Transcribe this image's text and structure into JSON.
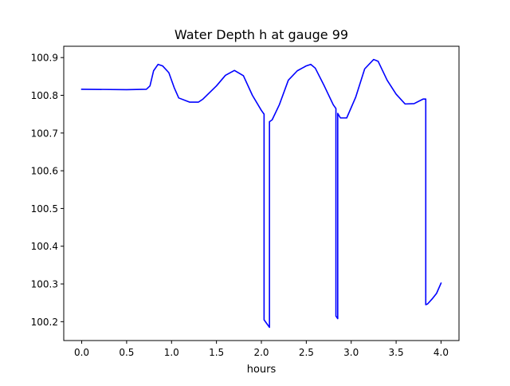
{
  "chart_data": {
    "type": "line",
    "title": "Water Depth h at gauge 99",
    "xlabel": "hours",
    "ylabel": "",
    "xlim": [
      -0.2,
      4.2
    ],
    "ylim": [
      100.15,
      100.93
    ],
    "xticks": [
      0.0,
      0.5,
      1.0,
      1.5,
      2.0,
      2.5,
      3.0,
      3.5,
      4.0
    ],
    "xtick_labels": [
      "0.0",
      "0.5",
      "1.0",
      "1.5",
      "2.0",
      "2.5",
      "3.0",
      "3.5",
      "4.0"
    ],
    "yticks": [
      100.2,
      100.3,
      100.4,
      100.5,
      100.6,
      100.7,
      100.8,
      100.9
    ],
    "ytick_labels": [
      "100.2",
      "100.3",
      "100.4",
      "100.5",
      "100.6",
      "100.7",
      "100.8",
      "100.9"
    ],
    "grid": false,
    "legend": "none",
    "series": [
      {
        "color": "#0000ff",
        "x": [
          0.0,
          0.5,
          0.72,
          0.76,
          0.8,
          0.85,
          0.9,
          0.97,
          1.03,
          1.08,
          1.2,
          1.3,
          1.35,
          1.5,
          1.6,
          1.7,
          1.8,
          1.9,
          2.0,
          2.03,
          2.03,
          2.09,
          2.09,
          2.12,
          2.2,
          2.3,
          2.4,
          2.5,
          2.55,
          2.6,
          2.7,
          2.8,
          2.83,
          2.83,
          2.85,
          2.85,
          2.88,
          2.95,
          3.05,
          3.15,
          3.25,
          3.3,
          3.4,
          3.5,
          3.6,
          3.7,
          3.8,
          3.83,
          3.83,
          3.85,
          3.9,
          3.95,
          4.0
        ],
        "y": [
          100.816,
          100.815,
          100.816,
          100.825,
          100.865,
          100.882,
          100.878,
          100.86,
          100.82,
          100.793,
          100.782,
          100.782,
          100.79,
          100.825,
          100.853,
          100.866,
          100.852,
          100.8,
          100.76,
          100.75,
          100.205,
          100.185,
          100.73,
          100.735,
          100.775,
          100.84,
          100.865,
          100.878,
          100.882,
          100.872,
          100.825,
          100.775,
          100.765,
          100.215,
          100.208,
          100.752,
          100.74,
          100.74,
          100.795,
          100.87,
          100.895,
          100.89,
          100.84,
          100.803,
          100.777,
          100.778,
          100.79,
          100.79,
          100.245,
          100.247,
          100.26,
          100.275,
          100.302
        ]
      }
    ]
  }
}
